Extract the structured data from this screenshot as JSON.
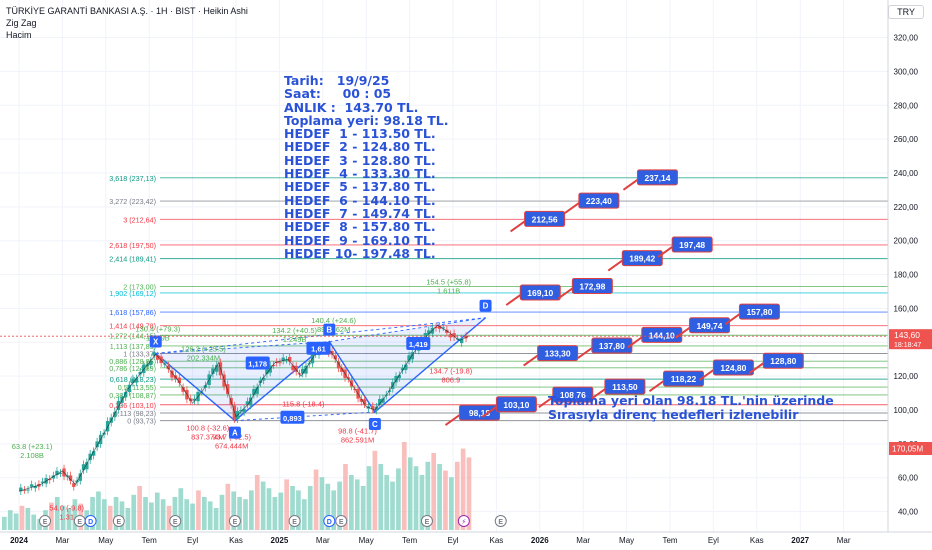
{
  "header": {
    "title": "TÜRKİYE GARANTİ BANKASI A.Ş. · 1H · BIST · Heikin Ashi",
    "indicator1": "Zig Zag",
    "indicator2": "Hacim",
    "currency": "TRY"
  },
  "note_lines": [
    "Tarih:   19/9/25",
    "Saat:     00 : 05",
    "ANLIK :  143.70 TL.",
    "Toplama yeri: 98.18 TL.",
    "HEDEF  1 - 113.50 TL.",
    "HEDEF  2 - 124.80 TL.",
    "HEDEF  3 - 128.80 TL.",
    "HEDEF  4 - 133.30 TL.",
    "HEDEF  5 - 137.80 TL.",
    "HEDEF  6 - 144.10 TL.",
    "HEDEF  7 - 149.74 TL.",
    "HEDEF  8 - 157.80 TL.",
    "HEDEF  9 - 169.10 TL.",
    "HEDEF 10- 197.48 TL."
  ],
  "bottom_text": {
    "line1": "Toplama yeri olan 98.18 TL.'nin üzerinde",
    "line2": "Sırasıyla direnç hedefleri izlenebilir"
  },
  "chart_data": {
    "type": "candlestick",
    "y_axis": {
      "ticks": [
        320,
        300,
        280,
        260,
        240,
        220,
        200,
        180,
        160,
        140,
        120,
        100,
        80,
        60,
        40
      ],
      "tick_labels": [
        "320,00",
        "300,00",
        "280,00",
        "260,00",
        "240,00",
        "220,00",
        "200,00",
        "180,00",
        "160,00",
        "140,00",
        "120,00",
        "100,00",
        "80,00",
        "60,00",
        "40,00"
      ]
    },
    "x_axis": {
      "labels": [
        {
          "label": "2024",
          "m": 0,
          "bold": true
        },
        {
          "label": "Mar",
          "m": 2
        },
        {
          "label": "May",
          "m": 4
        },
        {
          "label": "Tem",
          "m": 6
        },
        {
          "label": "Eyl",
          "m": 8
        },
        {
          "label": "Kas",
          "m": 10
        },
        {
          "label": "2025",
          "m": 12,
          "bold": true
        },
        {
          "label": "Mar",
          "m": 14
        },
        {
          "label": "May",
          "m": 16
        },
        {
          "label": "Tem",
          "m": 18
        },
        {
          "label": "Eyl",
          "m": 20
        },
        {
          "label": "Kas",
          "m": 22
        },
        {
          "label": "2026",
          "m": 24,
          "bold": true
        },
        {
          "label": "Mar",
          "m": 26
        },
        {
          "label": "May",
          "m": 28
        },
        {
          "label": "Tem",
          "m": 30
        },
        {
          "label": "Eyl",
          "m": 32
        },
        {
          "label": "Kas",
          "m": 34
        },
        {
          "label": "2027",
          "m": 36,
          "bold": true
        },
        {
          "label": "Mar",
          "m": 38
        }
      ]
    },
    "price_label": {
      "value": 143.6,
      "text": "143,60",
      "sub": "18:18:47",
      "color": "#ef5350"
    },
    "volume_label": {
      "text": "170,05M",
      "color": "#ef5350"
    },
    "fib_levels": [
      {
        "ratio": "3,618",
        "price": 237.13,
        "text": "3,618 (237,13)",
        "color": "#089981"
      },
      {
        "ratio": "3,272",
        "price": 223.42,
        "text": "3,272 (223,42)",
        "color": "#787b86"
      },
      {
        "ratio": "3",
        "price": 212.64,
        "text": "3 (212,64)",
        "color": "#f23645"
      },
      {
        "ratio": "2,618",
        "price": 197.5,
        "text": "2,618 (197,50)",
        "color": "#f23645"
      },
      {
        "ratio": "2,414",
        "price": 189.41,
        "text": "2,414 (189,41)",
        "color": "#089981"
      },
      {
        "ratio": "2",
        "price": 173.0,
        "text": "2 (173,00)",
        "color": "#4caf50"
      },
      {
        "ratio": "1,902",
        "price": 169.12,
        "text": "1,902 (169,12)",
        "color": "#00bcd4"
      },
      {
        "ratio": "1,618",
        "price": 157.86,
        "text": "1,618 (157,86)",
        "color": "#2962ff"
      },
      {
        "ratio": "1,414",
        "price": 149.78,
        "text": "1,414 (149,78)",
        "color": "#f23645"
      },
      {
        "ratio": "1,272",
        "price": 144.15,
        "text": "1,272 (144,15)",
        "color": "#4caf50"
      },
      {
        "ratio": "1,113",
        "price": 137.85,
        "text": "1,113 (137,85)",
        "color": "#4caf50"
      },
      {
        "ratio": "1",
        "price": 133.37,
        "text": "1 (133,37)",
        "color": "#787b86"
      },
      {
        "ratio": "0,886",
        "price": 128.85,
        "text": "0,886 (128,85)",
        "color": "#4caf50"
      },
      {
        "ratio": "0,786",
        "price": 124.89,
        "text": "0,786 (124,89)",
        "color": "#4caf50"
      },
      {
        "ratio": "0,618",
        "price": 118.23,
        "text": "0,618 (118,23)",
        "color": "#089981"
      },
      {
        "ratio": "0,5",
        "price": 113.55,
        "text": "0,5 (113,55)",
        "color": "#4caf50"
      },
      {
        "ratio": "0,382",
        "price": 108.87,
        "text": "0,382 (108,87)",
        "color": "#4caf50"
      },
      {
        "ratio": "0,236",
        "price": 103.1,
        "text": "0,236 (103,10)",
        "color": "#f23645"
      },
      {
        "ratio": "0,113",
        "price": 98.23,
        "text": "0,113 (98,23)",
        "color": "#787b86"
      },
      {
        "ratio": "0",
        "price": 93.73,
        "text": "0 (93,73)",
        "color": "#787b86"
      }
    ],
    "target_tags": [
      {
        "text": "98,18",
        "m": 20.3,
        "price": 98.18
      },
      {
        "text": "103,10",
        "m": 22.0,
        "price": 103.1
      },
      {
        "text": "108,76",
        "m": 24.6,
        "price": 108.76
      },
      {
        "text": "113,50",
        "m": 27.0,
        "price": 113.5
      },
      {
        "text": "118,22",
        "m": 29.7,
        "price": 118.22
      },
      {
        "text": "124,80",
        "m": 32.0,
        "price": 124.8
      },
      {
        "text": "128,80",
        "m": 34.3,
        "price": 128.8
      },
      {
        "text": "133,30",
        "m": 23.9,
        "price": 133.3
      },
      {
        "text": "137,80",
        "m": 26.4,
        "price": 137.8
      },
      {
        "text": "144,10",
        "m": 28.7,
        "price": 144.1
      },
      {
        "text": "149,74",
        "m": 30.9,
        "price": 149.74
      },
      {
        "text": "157,80",
        "m": 33.2,
        "price": 157.8
      },
      {
        "text": "169,10",
        "m": 23.1,
        "price": 169.1
      },
      {
        "text": "172,98",
        "m": 25.5,
        "price": 172.98
      },
      {
        "text": "189,42",
        "m": 27.8,
        "price": 189.42
      },
      {
        "text": "197,48",
        "m": 30.1,
        "price": 197.48
      },
      {
        "text": "212,56",
        "m": 23.3,
        "price": 212.56
      },
      {
        "text": "223,40",
        "m": 25.8,
        "price": 223.4
      },
      {
        "text": "237,14",
        "m": 28.5,
        "price": 237.14
      }
    ],
    "pivots": [
      {
        "label": "X",
        "m": 6.3,
        "price": 133.4
      },
      {
        "label": "A",
        "m": 9.95,
        "price": 93.7
      },
      {
        "label": "B",
        "m": 14.3,
        "price": 140.4
      },
      {
        "label": "C",
        "m": 16.4,
        "price": 98.8
      },
      {
        "label": "D",
        "m": 21.5,
        "price": 154.5
      }
    ],
    "pattern_labels": [
      {
        "text": "1,178",
        "m": 11.0,
        "price": 127.5
      },
      {
        "text": "1,61",
        "m": 13.8,
        "price": 136.2
      },
      {
        "text": "0,893",
        "m": 12.6,
        "price": 95.4
      },
      {
        "text": "1,419",
        "m": 18.4,
        "price": 139.0
      }
    ],
    "zigzag_labels": [
      {
        "text": "126.2 (+25.5)",
        "text2": "202.334M",
        "m": 8.5,
        "price": 134.5,
        "color": "#4caf50"
      },
      {
        "text": "134.2 (+40.5)",
        "text2": "1.249B",
        "m": 12.7,
        "price": 145.5,
        "color": "#4caf50"
      },
      {
        "text": "140.4 (+24.6)",
        "text2": "890.862M",
        "m": 14.5,
        "price": 151.5,
        "color": "#4caf50"
      },
      {
        "text": "154.5 (+55.8)",
        "text2": "1.611B",
        "m": 19.8,
        "price": 174.0,
        "color": "#4caf50"
      },
      {
        "text": "100.8 (-32.6)",
        "text2": "837.374M",
        "m": 8.7,
        "price": 88.0,
        "color": "#f23645"
      },
      {
        "text": "93.7 (-32.5)",
        "text2": "674.444M",
        "m": 9.8,
        "price": 82.5,
        "color": "#f23645"
      },
      {
        "text": "98.8 (-41.7)",
        "text2": "862.591M",
        "m": 15.6,
        "price": 86.0,
        "color": "#f23645"
      },
      {
        "text": "115.8 (-18.4)",
        "text2": "",
        "m": 13.1,
        "price": 102.0,
        "color": "#f23645"
      },
      {
        "text": "134.7 (-19.8)",
        "text2": "806.9",
        "m": 19.9,
        "price": 121.5,
        "color": "#f23645"
      },
      {
        "text": "63.8 (+23.1)",
        "text2": "2.108B",
        "m": 0.6,
        "price": 77.0,
        "color": "#4caf50"
      },
      {
        "text": "54.0 (-9.8)",
        "text2": "1.31",
        "m": 2.2,
        "price": 40.5,
        "color": "#f23645"
      },
      {
        "text": "130.4 (+79.3)",
        "text2": "1.179B",
        "m": 6.4,
        "price": 146.5,
        "color": "#4caf50"
      }
    ],
    "price_path": [
      [
        0,
        52
      ],
      [
        1,
        56
      ],
      [
        2,
        64
      ],
      [
        2.6,
        56
      ],
      [
        3.2,
        70
      ],
      [
        4,
        88
      ],
      [
        5,
        112
      ],
      [
        6,
        128
      ],
      [
        6.3,
        133
      ],
      [
        6.8,
        126
      ],
      [
        7.3,
        118
      ],
      [
        8,
        104
      ],
      [
        8.5,
        112
      ],
      [
        9.2,
        128
      ],
      [
        9.7,
        108
      ],
      [
        10,
        96
      ],
      [
        10.6,
        104
      ],
      [
        11.2,
        118
      ],
      [
        11.8,
        128
      ],
      [
        12.4,
        130
      ],
      [
        13,
        120
      ],
      [
        13.6,
        132
      ],
      [
        14.2,
        138
      ],
      [
        14.8,
        126
      ],
      [
        15.4,
        114
      ],
      [
        16,
        102
      ],
      [
        16.4,
        100
      ],
      [
        17,
        110
      ],
      [
        17.6,
        122
      ],
      [
        18.2,
        134
      ],
      [
        18.8,
        144
      ],
      [
        19.3,
        150
      ],
      [
        19.8,
        146
      ],
      [
        20.3,
        141
      ],
      [
        20.7,
        143.6
      ]
    ],
    "volume_bars_relative": [
      0.12,
      0.18,
      0.15,
      0.22,
      0.2,
      0.14,
      0.1,
      0.18,
      0.25,
      0.3,
      0.22,
      0.2,
      0.28,
      0.24,
      0.18,
      0.3,
      0.35,
      0.28,
      0.22,
      0.3,
      0.26,
      0.2,
      0.32,
      0.4,
      0.3,
      0.25,
      0.34,
      0.28,
      0.22,
      0.3,
      0.38,
      0.28,
      0.24,
      0.36,
      0.3,
      0.26,
      0.2,
      0.32,
      0.42,
      0.35,
      0.3,
      0.28,
      0.36,
      0.5,
      0.44,
      0.38,
      0.3,
      0.34,
      0.46,
      0.4,
      0.36,
      0.28,
      0.4,
      0.55,
      0.48,
      0.42,
      0.36,
      0.44,
      0.6,
      0.5,
      0.46,
      0.4,
      0.58,
      0.72,
      0.6,
      0.5,
      0.44,
      0.56,
      0.8,
      0.66,
      0.58,
      0.5,
      0.62,
      0.7,
      0.6,
      0.54,
      0.48,
      0.62,
      0.74,
      0.66
    ],
    "event_markers": [
      {
        "type": "E",
        "m": 1.2
      },
      {
        "type": "E",
        "m": 2.8
      },
      {
        "type": "D",
        "m": 3.3
      },
      {
        "type": "E",
        "m": 4.6
      },
      {
        "type": "E",
        "m": 7.2
      },
      {
        "type": "E",
        "m": 9.95
      },
      {
        "type": "E",
        "m": 12.7
      },
      {
        "type": "D",
        "m": 14.3
      },
      {
        "type": "E",
        "m": 14.85
      },
      {
        "type": "E",
        "m": 18.8
      },
      {
        "type": "⚡",
        "m": 20.5
      },
      {
        "type": "E",
        "m": 22.2
      }
    ]
  }
}
